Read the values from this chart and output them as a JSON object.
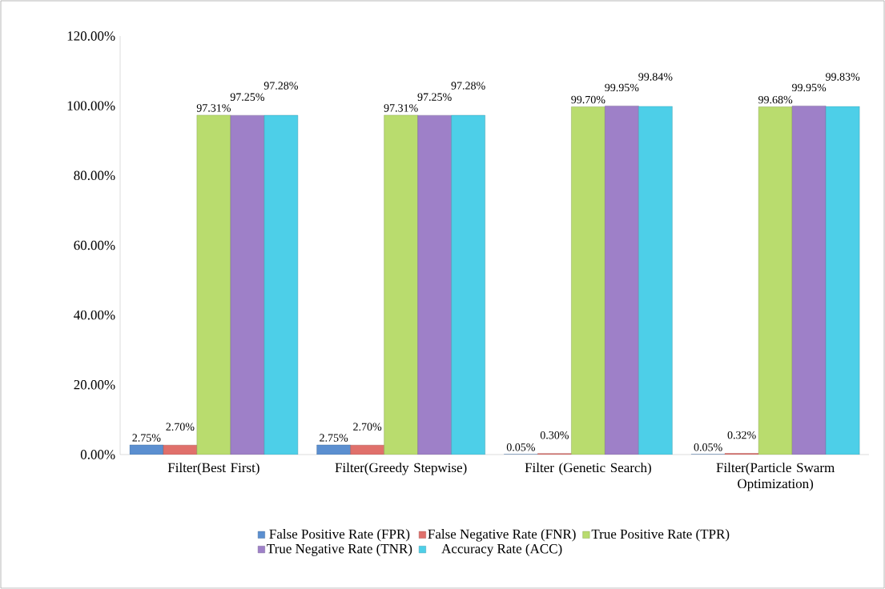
{
  "chart_data": {
    "type": "bar",
    "categories": [
      "Filter(Best First)",
      "Filter(Greedy Stepwise)",
      "Filter (Genetic Search)",
      "Filter(Particle Swarm Optimization)"
    ],
    "series": [
      {
        "name": "False Positive Rate (FPR)",
        "color": "#5b8fd0",
        "values": [
          2.75,
          2.75,
          0.05,
          0.05
        ],
        "value_labels": [
          "2.75%",
          "2.75%",
          "0.05%",
          "0.05%"
        ]
      },
      {
        "name": "False Negative Rate (FNR)",
        "color": "#e0706b",
        "values": [
          2.7,
          2.7,
          0.3,
          0.32
        ],
        "value_labels": [
          "2.70%",
          "2.70%",
          "0.30%",
          "0.32%"
        ]
      },
      {
        "name": "True Positive Rate (TPR)",
        "color": "#b9dc6e",
        "values": [
          97.31,
          97.31,
          99.7,
          99.68
        ],
        "value_labels": [
          "97.31%",
          "97.31%",
          "99.70%",
          "99.68%"
        ]
      },
      {
        "name": "True Negative Rate (TNR)",
        "color": "#9e80c8",
        "values": [
          97.25,
          97.25,
          99.95,
          99.95
        ],
        "value_labels": [
          "97.25%",
          "97.25%",
          "99.95%",
          "99.95%"
        ]
      },
      {
        "name": "Accuracy Rate (ACC)",
        "color": "#4dcfe8",
        "values": [
          97.28,
          97.28,
          99.84,
          99.83
        ],
        "value_labels": [
          "97.28%",
          "97.28%",
          "99.84%",
          "99.83%"
        ]
      }
    ],
    "ylim": [
      0,
      120
    ],
    "yticks": [
      {
        "value": 0,
        "label": "0.00%"
      },
      {
        "value": 20,
        "label": "20.00%"
      },
      {
        "value": 40,
        "label": "40.00%"
      },
      {
        "value": 60,
        "label": "60.00%"
      },
      {
        "value": 80,
        "label": "80.00%"
      },
      {
        "value": 100,
        "label": "100.00%"
      },
      {
        "value": 120,
        "label": "120.00%"
      }
    ],
    "grid": false,
    "legend": "bottom"
  }
}
